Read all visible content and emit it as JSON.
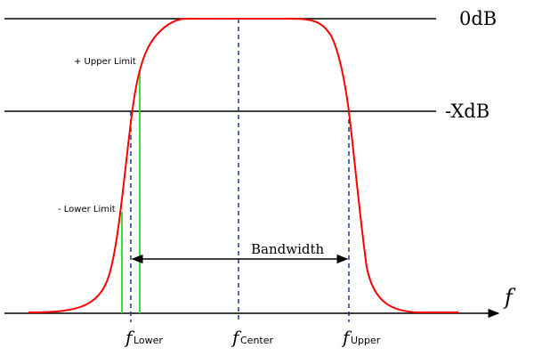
{
  "labels": {
    "level_top": "0dB",
    "level_mid": "-XdB",
    "upper_limit": "+ Upper Limit",
    "lower_limit": "- Lower Limit",
    "bandwidth": "Bandwidth",
    "axis_symbol": "f",
    "f_lower_sym": "f",
    "f_lower_sub": "Lower",
    "f_center_sym": "f",
    "f_center_sub": "Center",
    "f_upper_sym": "f",
    "f_upper_sub": "Upper"
  },
  "colors": {
    "curve": "#ff0000",
    "markers": "#1a3a8a",
    "limits": "#22dd22",
    "axis": "#000000"
  }
}
